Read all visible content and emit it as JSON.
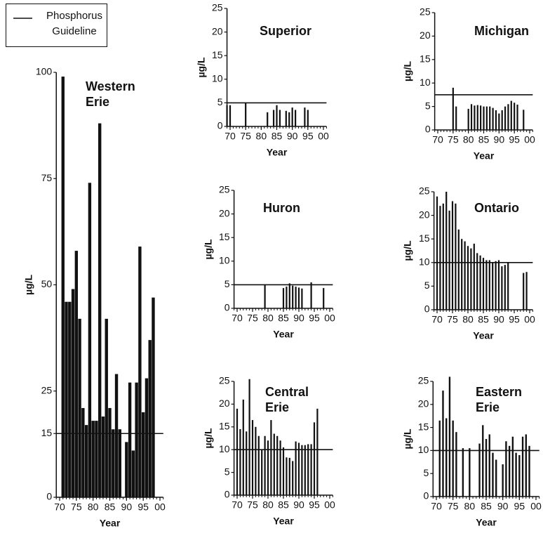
{
  "legend_label": "Phosphorus Guideline",
  "chart_data": [
    {
      "type": "bar",
      "title": "Western Erie",
      "ylabel": "µg/L",
      "xlabel": "Year",
      "color": "#111111",
      "guideline": 15,
      "x": [
        71,
        72,
        73,
        74,
        75,
        76,
        77,
        78,
        79,
        80,
        81,
        82,
        83,
        84,
        85,
        86,
        87,
        88,
        90,
        91,
        92,
        93,
        94,
        95,
        96,
        97,
        98
      ],
      "values": [
        99,
        46,
        46,
        49,
        58,
        42,
        21,
        17,
        74,
        18,
        18,
        88,
        19,
        42,
        21,
        16,
        29,
        16,
        13,
        27,
        11,
        27,
        59,
        20,
        28,
        37,
        47
      ],
      "xlim": [
        69,
        101
      ],
      "xticks": [
        70,
        75,
        80,
        85,
        90,
        95,
        {
          "value": 100,
          "label": "00"
        }
      ],
      "ylim": [
        0,
        100
      ],
      "yticks": [
        0,
        15,
        25,
        50,
        75,
        100
      ]
    },
    {
      "type": "bar",
      "title": "Superior",
      "ylabel": "µg/L",
      "xlabel": "Year",
      "color": "#111111",
      "guideline": 5,
      "x": [
        69,
        70,
        75,
        82,
        84,
        85,
        86,
        88,
        89,
        90,
        91,
        94,
        95
      ],
      "values": [
        4.5,
        4.5,
        5,
        3,
        3.5,
        4.5,
        3.5,
        3.3,
        3,
        4,
        3.5,
        4,
        3.5
      ],
      "xlim": [
        69,
        101
      ],
      "xticks": [
        70,
        75,
        80,
        85,
        90,
        95,
        {
          "value": 100,
          "label": "00"
        }
      ],
      "ylim": [
        0,
        25
      ],
      "yticks": [
        0,
        5,
        10,
        15,
        20,
        25
      ]
    },
    {
      "type": "bar",
      "title": "Michigan",
      "ylabel": "µg/L",
      "xlabel": "Year",
      "color": "#111111",
      "guideline": 7.5,
      "x": [
        75,
        76,
        80,
        81,
        82,
        83,
        84,
        85,
        86,
        87,
        88,
        89,
        90,
        91,
        92,
        93,
        94,
        95,
        96,
        98
      ],
      "values": [
        9,
        5,
        4.5,
        5.5,
        5.2,
        5.3,
        5.2,
        5,
        5,
        5,
        4.7,
        4.2,
        3.5,
        4.2,
        5,
        5.5,
        6.2,
        5.8,
        5.4,
        4.3
      ],
      "xlim": [
        69,
        101
      ],
      "xticks": [
        70,
        75,
        80,
        85,
        90,
        95,
        {
          "value": 100,
          "label": "00"
        }
      ],
      "ylim": [
        0,
        25
      ],
      "yticks": [
        0,
        5,
        10,
        15,
        20,
        25
      ]
    },
    {
      "type": "bar",
      "title": "Huron",
      "ylabel": "µg/L",
      "xlabel": "Year",
      "color": "#111111",
      "guideline": 5,
      "x": [
        79,
        85,
        86,
        87,
        88,
        89,
        90,
        91,
        94,
        98
      ],
      "values": [
        5,
        4.3,
        4.6,
        5.3,
        4.8,
        4.6,
        4.4,
        4.2,
        5.5,
        4.3
      ],
      "xlim": [
        69,
        101
      ],
      "xticks": [
        70,
        75,
        80,
        85,
        90,
        95,
        {
          "value": 100,
          "label": "00"
        }
      ],
      "ylim": [
        0,
        25
      ],
      "yticks": [
        0,
        5,
        10,
        15,
        20,
        25
      ]
    },
    {
      "type": "bar",
      "title": "Ontario",
      "ylabel": "µg/L",
      "xlabel": "Year",
      "color": "#111111",
      "guideline": 10,
      "x": [
        70,
        71,
        72,
        73,
        74,
        75,
        76,
        77,
        78,
        79,
        80,
        81,
        82,
        83,
        84,
        85,
        86,
        87,
        88,
        89,
        90,
        91,
        92,
        93,
        98,
        99
      ],
      "values": [
        24,
        22,
        22.5,
        25,
        21,
        23,
        22.5,
        17,
        15,
        14.5,
        13.5,
        13,
        14,
        12,
        11.5,
        11,
        10.5,
        10.5,
        10,
        10.3,
        10.5,
        9.2,
        9.5,
        10,
        7.8,
        8
      ],
      "xlim": [
        69,
        101
      ],
      "xticks": [
        70,
        75,
        80,
        85,
        90,
        95,
        {
          "value": 100,
          "label": "00"
        }
      ],
      "ylim": [
        0,
        25
      ],
      "yticks": [
        0,
        5,
        10,
        15,
        20,
        25
      ]
    },
    {
      "type": "bar",
      "title": "Central Erie",
      "ylabel": "µg/L",
      "xlabel": "Year",
      "color": "#111111",
      "guideline": 10,
      "x": [
        70,
        71,
        72,
        73,
        74,
        75,
        76,
        77,
        78,
        79,
        80,
        81,
        82,
        83,
        84,
        85,
        86,
        87,
        88,
        89,
        90,
        91,
        92,
        93,
        94,
        95,
        96
      ],
      "values": [
        19,
        14.5,
        21,
        14,
        25.5,
        16.5,
        15,
        13,
        10,
        13,
        12,
        16.5,
        13.5,
        13,
        12,
        10.5,
        8.3,
        8.2,
        7.5,
        11.8,
        11.5,
        11,
        11,
        11.2,
        11.2,
        16,
        19
      ],
      "xlim": [
        69,
        101
      ],
      "xticks": [
        70,
        75,
        80,
        85,
        90,
        95,
        {
          "value": 100,
          "label": "00"
        }
      ],
      "ylim": [
        0,
        25
      ],
      "yticks": [
        0,
        5,
        10,
        15,
        20,
        25
      ]
    },
    {
      "type": "bar",
      "title": "Eastern Erie",
      "ylabel": "µg/L",
      "xlabel": "Year",
      "color": "#111111",
      "guideline": 10,
      "x": [
        71,
        72,
        73,
        74,
        75,
        76,
        78,
        80,
        83,
        84,
        85,
        86,
        87,
        88,
        90,
        91,
        92,
        93,
        94,
        95,
        96,
        97,
        98
      ],
      "values": [
        16.5,
        23,
        17,
        26,
        16.5,
        14,
        10.5,
        10.5,
        11.5,
        15.5,
        12.5,
        13.5,
        9.5,
        8,
        7,
        12,
        11,
        13,
        9.5,
        9,
        13,
        13.5,
        11
      ],
      "xlim": [
        69,
        101
      ],
      "xticks": [
        70,
        75,
        80,
        85,
        90,
        95,
        {
          "value": 100,
          "label": "00"
        }
      ],
      "ylim": [
        0,
        25
      ],
      "yticks": [
        0,
        5,
        10,
        15,
        20,
        25
      ]
    }
  ]
}
